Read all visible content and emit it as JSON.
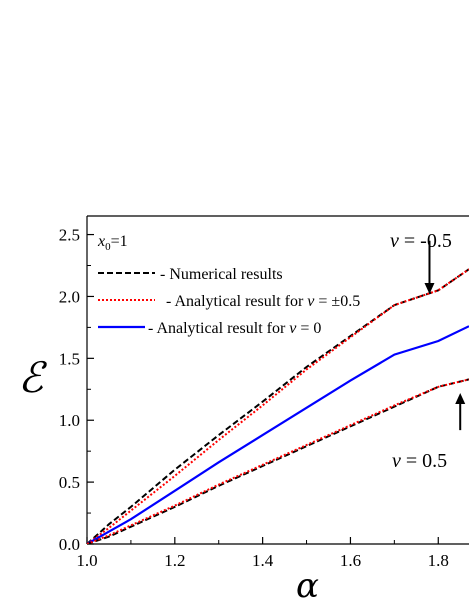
{
  "chart_data": {
    "type": "line",
    "xlabel": "α",
    "ylabel": "ℰ",
    "xlim": [
      1.0,
      1.87
    ],
    "ylim": [
      0.0,
      2.65
    ],
    "x_ticks": [
      "1.0",
      "1.2",
      "1.4",
      "1.6",
      "1.8"
    ],
    "y_ticks": [
      "0.0",
      "0.5",
      "1.0",
      "1.5",
      "2.0",
      "2.5"
    ],
    "x_tick_values": [
      1.0,
      1.2,
      1.4,
      1.6,
      1.8
    ],
    "y_tick_values": [
      0.0,
      0.5,
      1.0,
      1.5,
      2.0,
      2.5
    ],
    "grid": false,
    "legend_placement": "top-left",
    "parameter_label": {
      "var": "x",
      "sub": "0",
      "value": "=1"
    },
    "legend": [
      {
        "key": "numerical",
        "text": "- Numerical results",
        "color": "#000000",
        "dash": "dashed"
      },
      {
        "key": "analytic_half",
        "text": "- Analytical result for ",
        "math": "v",
        "suffix": " = ±0.5",
        "color": "#ff0000",
        "dash": "dotted"
      },
      {
        "key": "analytic_zero",
        "text": "- Analytical result for ",
        "math": "v",
        "suffix": " = 0",
        "color": "#0000ff",
        "dash": "solid"
      }
    ],
    "series": [
      {
        "name": "- Numerical results",
        "group": "upper",
        "color": "#000000",
        "dash": "dashed",
        "x": [
          1.0,
          1.05,
          1.1,
          1.2,
          1.3,
          1.4,
          1.5,
          1.6,
          1.7,
          1.8,
          1.87
        ],
        "y": [
          0.0,
          0.16,
          0.3,
          0.6,
          0.88,
          1.15,
          1.43,
          1.68,
          1.93,
          2.05,
          2.22
        ]
      },
      {
        "name": "- Analytical result for v = ±0.5",
        "group": "upper",
        "color": "#ff0000",
        "dash": "dotted",
        "x": [
          1.0,
          1.05,
          1.1,
          1.2,
          1.3,
          1.4,
          1.5,
          1.6,
          1.7,
          1.8,
          1.87
        ],
        "y": [
          0.0,
          0.13,
          0.27,
          0.55,
          0.84,
          1.12,
          1.41,
          1.67,
          1.93,
          2.05,
          2.22
        ]
      },
      {
        "name": "- Analytical result for v = 0",
        "group": "middle",
        "color": "#0000ff",
        "dash": "solid",
        "x": [
          1.0,
          1.05,
          1.1,
          1.2,
          1.3,
          1.4,
          1.5,
          1.6,
          1.7,
          1.8,
          1.87
        ],
        "y": [
          0.0,
          0.1,
          0.2,
          0.43,
          0.66,
          0.88,
          1.1,
          1.32,
          1.53,
          1.64,
          1.76
        ]
      },
      {
        "name": "- Numerical results",
        "group": "lower",
        "color": "#000000",
        "dash": "dashed",
        "x": [
          1.0,
          1.05,
          1.1,
          1.2,
          1.3,
          1.4,
          1.5,
          1.6,
          1.7,
          1.8,
          1.87
        ],
        "y": [
          0.0,
          0.06,
          0.14,
          0.3,
          0.47,
          0.63,
          0.79,
          0.95,
          1.11,
          1.27,
          1.33
        ]
      },
      {
        "name": "- Analytical result for v = ±0.5",
        "group": "lower",
        "color": "#ff0000",
        "dash": "dotted",
        "x": [
          1.0,
          1.05,
          1.1,
          1.2,
          1.3,
          1.4,
          1.5,
          1.6,
          1.7,
          1.8,
          1.87
        ],
        "y": [
          0.0,
          0.07,
          0.15,
          0.31,
          0.48,
          0.64,
          0.8,
          0.96,
          1.12,
          1.27,
          1.33
        ]
      }
    ],
    "annotations": [
      {
        "key": "upper",
        "text_var": "v",
        "text_rest": " = -0.5",
        "arrow_x": 1.78,
        "arrow_from_y": 2.45,
        "arrow_to_y": 2.02
      },
      {
        "key": "lower",
        "text_var": "v",
        "text_rest": " = 0.5",
        "arrow_x": 1.85,
        "arrow_from_y": 0.92,
        "arrow_to_y": 1.22
      }
    ]
  }
}
